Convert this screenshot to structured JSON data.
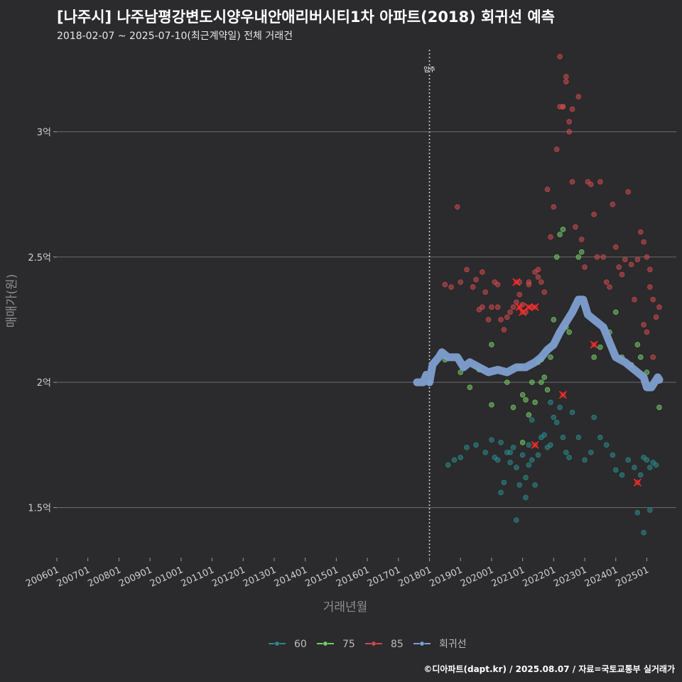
{
  "title": "[나주시] 나주남평강변도시양우내안애리버시티1차 아파트(2018) 회귀선 예측",
  "subtitle": "2018-02-07 ~ 2025-07-10(최근계약일) 전체 거래건",
  "footer": "©디아파트(dapt.kr) / 2025.08.07 / 자료=국토교통부 실거래가",
  "colors": {
    "background": "#2b2a2c",
    "grid": "#6a6a6a",
    "s60": "#2a8a8c",
    "s75": "#77cc66",
    "s85": "#cc4a4f",
    "regression": "#7e9fd0",
    "highlight": "#ff2a2a"
  },
  "chart_data": {
    "type": "scatter",
    "title": "[나주시] 나주남평강변도시양우내안애리버시티1차 아파트(2018) 회귀선 예측",
    "xlabel": "거래년월",
    "ylabel": "매매가(원)",
    "xlim": [
      2006.0,
      2025.95
    ],
    "ylim": [
      1.3,
      3.35
    ],
    "ytick_values": [
      1.5,
      2.0,
      2.5,
      3.0
    ],
    "ytick_labels": [
      "1.5억",
      "2억",
      "2.5억",
      "3억"
    ],
    "xtick_values": [
      2006,
      2007,
      2008,
      2009,
      2010,
      2011,
      2012,
      2013,
      2014,
      2015,
      2016,
      2017,
      2018,
      2019,
      2020,
      2021,
      2022,
      2023,
      2024,
      2025
    ],
    "xtick_labels": [
      "200601",
      "200701",
      "200801",
      "200901",
      "201001",
      "201101",
      "201201",
      "201301",
      "201401",
      "201501",
      "201601",
      "201701",
      "201801",
      "201901",
      "202001",
      "202101",
      "202201",
      "202301",
      "202401",
      "202501"
    ],
    "grid": "horizontal",
    "move_in": {
      "x": 2018.0,
      "label": "입주"
    },
    "legend": {
      "position": "bottom",
      "entries": [
        "60",
        "75",
        "85",
        "회귀선"
      ]
    },
    "series": [
      {
        "name": "60",
        "color": "#2a8a8c",
        "points": [
          [
            2018.6,
            1.67
          ],
          [
            2018.8,
            1.69
          ],
          [
            2019.0,
            1.7
          ],
          [
            2019.2,
            1.74
          ],
          [
            2019.5,
            1.75
          ],
          [
            2019.8,
            1.72
          ],
          [
            2020.0,
            1.77
          ],
          [
            2020.1,
            1.7
          ],
          [
            2020.2,
            1.69
          ],
          [
            2020.3,
            1.76
          ],
          [
            2020.4,
            1.6
          ],
          [
            2020.5,
            1.72
          ],
          [
            2020.6,
            1.68
          ],
          [
            2020.7,
            1.74
          ],
          [
            2020.8,
            1.66
          ],
          [
            2020.9,
            1.59
          ],
          [
            2021.0,
            1.71
          ],
          [
            2021.1,
            1.62
          ],
          [
            2021.2,
            1.75
          ],
          [
            2021.3,
            1.69
          ],
          [
            2021.4,
            1.59
          ],
          [
            2021.5,
            1.71
          ],
          [
            2021.6,
            1.78
          ],
          [
            2021.7,
            1.79
          ],
          [
            2021.8,
            1.74
          ],
          [
            2021.9,
            1.75
          ],
          [
            2022.0,
            1.86
          ],
          [
            2022.1,
            1.84
          ],
          [
            2022.2,
            1.9
          ],
          [
            2022.3,
            1.78
          ],
          [
            2022.4,
            1.72
          ],
          [
            2022.5,
            1.7
          ],
          [
            2022.8,
            1.78
          ],
          [
            2023.0,
            1.69
          ],
          [
            2023.2,
            1.72
          ],
          [
            2023.5,
            1.78
          ],
          [
            2023.7,
            1.75
          ],
          [
            2023.9,
            1.71
          ],
          [
            2024.0,
            1.65
          ],
          [
            2024.2,
            1.63
          ],
          [
            2024.4,
            1.69
          ],
          [
            2024.6,
            1.66
          ],
          [
            2024.8,
            1.63
          ],
          [
            2024.9,
            1.7
          ],
          [
            2025.0,
            1.69
          ],
          [
            2025.1,
            1.66
          ],
          [
            2025.2,
            1.68
          ],
          [
            2025.3,
            1.67
          ],
          [
            2020.8,
            1.45
          ],
          [
            2021.1,
            1.54
          ],
          [
            2024.9,
            1.4
          ],
          [
            2025.1,
            1.49
          ],
          [
            2024.7,
            1.48
          ],
          [
            2020.3,
            1.56
          ],
          [
            2021.3,
            1.85
          ],
          [
            2021.9,
            1.92
          ],
          [
            2022.6,
            1.88
          ],
          [
            2023.3,
            1.86
          ],
          [
            2021.2,
            1.67
          ],
          [
            2020.6,
            1.72
          ]
        ]
      },
      {
        "name": "75",
        "color": "#77cc66",
        "points": [
          [
            2018.0,
            2.0
          ],
          [
            2018.5,
            2.09
          ],
          [
            2019.0,
            2.04
          ],
          [
            2019.3,
            1.98
          ],
          [
            2019.6,
            2.05
          ],
          [
            2020.0,
            2.15
          ],
          [
            2020.0,
            1.91
          ],
          [
            2020.5,
            2.0
          ],
          [
            2020.7,
            1.9
          ],
          [
            2020.9,
            2.06
          ],
          [
            2021.0,
            1.95
          ],
          [
            2021.1,
            1.93
          ],
          [
            2021.2,
            1.87
          ],
          [
            2021.3,
            2.0
          ],
          [
            2021.4,
            1.92
          ],
          [
            2021.5,
            2.08
          ],
          [
            2021.6,
            2.0
          ],
          [
            2021.7,
            2.02
          ],
          [
            2021.8,
            1.97
          ],
          [
            2021.9,
            2.1
          ],
          [
            2022.0,
            2.25
          ],
          [
            2022.1,
            2.5
          ],
          [
            2022.2,
            2.59
          ],
          [
            2022.3,
            2.61
          ],
          [
            2022.4,
            2.22
          ],
          [
            2022.5,
            2.2
          ],
          [
            2022.8,
            2.5
          ],
          [
            2022.9,
            2.52
          ],
          [
            2023.3,
            2.1
          ],
          [
            2023.5,
            2.14
          ],
          [
            2023.8,
            2.2
          ],
          [
            2024.0,
            2.28
          ],
          [
            2024.2,
            2.1
          ],
          [
            2024.5,
            2.07
          ],
          [
            2024.7,
            2.15
          ],
          [
            2024.8,
            2.1
          ],
          [
            2025.0,
            2.04
          ],
          [
            2025.4,
            1.9
          ],
          [
            2021.6,
            2.09
          ],
          [
            2021.0,
            1.76
          ]
        ]
      },
      {
        "name": "85",
        "color": "#cc4a4f",
        "points": [
          [
            2018.5,
            2.39
          ],
          [
            2018.7,
            2.38
          ],
          [
            2018.9,
            2.7
          ],
          [
            2019.0,
            2.4
          ],
          [
            2019.2,
            2.45
          ],
          [
            2019.4,
            2.38
          ],
          [
            2019.5,
            2.41
          ],
          [
            2019.6,
            2.29
          ],
          [
            2019.7,
            2.44
          ],
          [
            2019.8,
            2.36
          ],
          [
            2019.9,
            2.25
          ],
          [
            2020.0,
            2.3
          ],
          [
            2020.1,
            2.4
          ],
          [
            2020.2,
            2.39
          ],
          [
            2020.3,
            2.25
          ],
          [
            2020.4,
            2.21
          ],
          [
            2020.5,
            2.26
          ],
          [
            2020.6,
            2.28
          ],
          [
            2020.7,
            2.3
          ],
          [
            2020.8,
            2.32
          ],
          [
            2020.9,
            2.35
          ],
          [
            2021.0,
            2.31
          ],
          [
            2021.1,
            2.28
          ],
          [
            2021.2,
            2.4
          ],
          [
            2021.3,
            2.3
          ],
          [
            2021.4,
            2.44
          ],
          [
            2021.5,
            2.42
          ],
          [
            2021.6,
            2.4
          ],
          [
            2021.7,
            2.36
          ],
          [
            2021.8,
            2.77
          ],
          [
            2021.9,
            2.58
          ],
          [
            2022.0,
            2.7
          ],
          [
            2022.1,
            2.93
          ],
          [
            2022.2,
            3.1
          ],
          [
            2022.3,
            3.1
          ],
          [
            2022.4,
            3.2
          ],
          [
            2022.5,
            3.0
          ],
          [
            2022.6,
            2.8
          ],
          [
            2022.7,
            2.62
          ],
          [
            2022.8,
            3.14
          ],
          [
            2022.9,
            2.57
          ],
          [
            2023.0,
            2.46
          ],
          [
            2023.1,
            2.8
          ],
          [
            2023.2,
            2.79
          ],
          [
            2023.3,
            2.67
          ],
          [
            2023.4,
            2.5
          ],
          [
            2023.5,
            2.8
          ],
          [
            2023.6,
            2.5
          ],
          [
            2023.7,
            2.4
          ],
          [
            2023.8,
            2.38
          ],
          [
            2023.9,
            2.71
          ],
          [
            2024.0,
            2.54
          ],
          [
            2024.1,
            2.46
          ],
          [
            2024.2,
            2.43
          ],
          [
            2024.3,
            2.49
          ],
          [
            2024.4,
            2.76
          ],
          [
            2024.5,
            2.47
          ],
          [
            2024.6,
            2.33
          ],
          [
            2024.7,
            2.49
          ],
          [
            2024.8,
            2.6
          ],
          [
            2024.9,
            2.56
          ],
          [
            2025.0,
            2.5
          ],
          [
            2025.1,
            2.45
          ],
          [
            2025.2,
            2.33
          ],
          [
            2025.3,
            2.26
          ],
          [
            2025.4,
            2.3
          ],
          [
            2025.0,
            2.2
          ],
          [
            2025.1,
            2.38
          ],
          [
            2025.2,
            2.1
          ],
          [
            2022.2,
            3.3
          ],
          [
            2022.3,
            3.1
          ],
          [
            2022.5,
            3.04
          ],
          [
            2022.6,
            3.09
          ],
          [
            2022.4,
            3.22
          ],
          [
            2020.9,
            2.4
          ],
          [
            2021.2,
            2.39
          ],
          [
            2021.5,
            2.45
          ],
          [
            2020.2,
            2.3
          ],
          [
            2019.7,
            2.3
          ],
          [
            2024.9,
            2.23
          ]
        ]
      }
    ],
    "highlighted_points": [
      [
        2020.8,
        2.4
      ],
      [
        2020.9,
        2.3
      ],
      [
        2021.0,
        2.28
      ],
      [
        2021.2,
        2.3
      ],
      [
        2021.4,
        2.3
      ],
      [
        2021.4,
        1.75
      ],
      [
        2022.3,
        1.95
      ],
      [
        2023.3,
        2.15
      ],
      [
        2024.7,
        1.6
      ]
    ],
    "regression": {
      "name": "회귀선",
      "color": "#7e9fd0",
      "points": [
        [
          2017.6,
          2.0
        ],
        [
          2017.8,
          2.0
        ],
        [
          2017.9,
          2.03
        ],
        [
          2018.0,
          2.0
        ],
        [
          2018.1,
          2.07
        ],
        [
          2018.3,
          2.1
        ],
        [
          2018.4,
          2.12
        ],
        [
          2018.6,
          2.1
        ],
        [
          2018.9,
          2.1
        ],
        [
          2019.1,
          2.06
        ],
        [
          2019.3,
          2.08
        ],
        [
          2019.6,
          2.06
        ],
        [
          2019.9,
          2.04
        ],
        [
          2020.2,
          2.05
        ],
        [
          2020.5,
          2.04
        ],
        [
          2020.8,
          2.06
        ],
        [
          2021.1,
          2.06
        ],
        [
          2021.4,
          2.08
        ],
        [
          2021.6,
          2.1
        ],
        [
          2021.8,
          2.13
        ],
        [
          2022.0,
          2.15
        ],
        [
          2022.2,
          2.2
        ],
        [
          2022.4,
          2.24
        ],
        [
          2022.6,
          2.28
        ],
        [
          2022.8,
          2.33
        ],
        [
          2022.95,
          2.33
        ],
        [
          2023.1,
          2.27
        ],
        [
          2023.3,
          2.25
        ],
        [
          2023.6,
          2.22
        ],
        [
          2023.8,
          2.16
        ],
        [
          2024.0,
          2.1
        ],
        [
          2024.3,
          2.08
        ],
        [
          2024.6,
          2.05
        ],
        [
          2024.9,
          2.02
        ],
        [
          2025.0,
          1.98
        ],
        [
          2025.15,
          1.98
        ],
        [
          2025.35,
          2.02
        ],
        [
          2025.4,
          2.01
        ]
      ]
    }
  }
}
